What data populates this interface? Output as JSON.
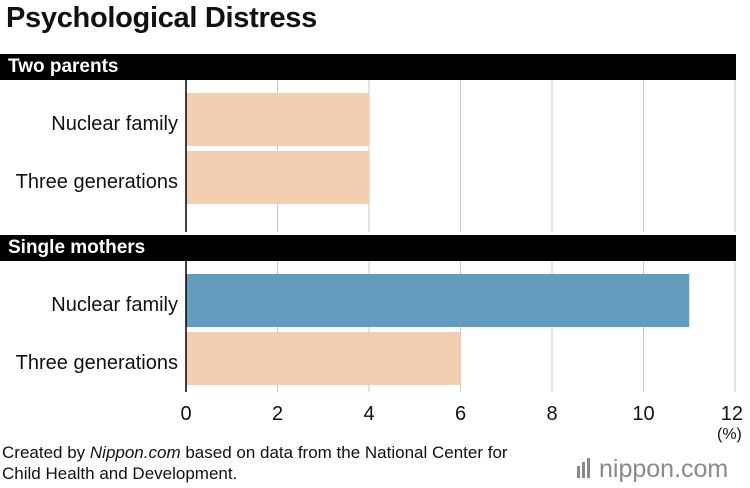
{
  "chart_data": {
    "type": "bar",
    "orientation": "horizontal",
    "title": "Psychological Distress",
    "groups": [
      {
        "name": "Two parents",
        "categories": [
          "Nuclear family",
          "Three generations"
        ],
        "values": [
          4,
          4
        ]
      },
      {
        "name": "Single mothers",
        "categories": [
          "Nuclear family",
          "Three generations"
        ],
        "values": [
          11,
          6
        ]
      }
    ],
    "xlim": [
      0,
      12
    ],
    "xticks": [
      "0",
      "2",
      "4",
      "6",
      "8",
      "10",
      "12"
    ],
    "unit_label": "(%)",
    "grid": "vertical",
    "colors": {
      "default_bar": "#f2cfb1",
      "highlight_bar": "#649cc0",
      "grid": "#c8c8c8",
      "group_header": "#000000"
    },
    "highlight": {
      "group": 1,
      "category": 0
    }
  },
  "credit": {
    "prefix": "Created by ",
    "source_italic": "Nippon.com",
    "suffix": " based on data from the National Center for Child Health and Development."
  },
  "logo": {
    "text": "nippon",
    "tld": ".com"
  }
}
